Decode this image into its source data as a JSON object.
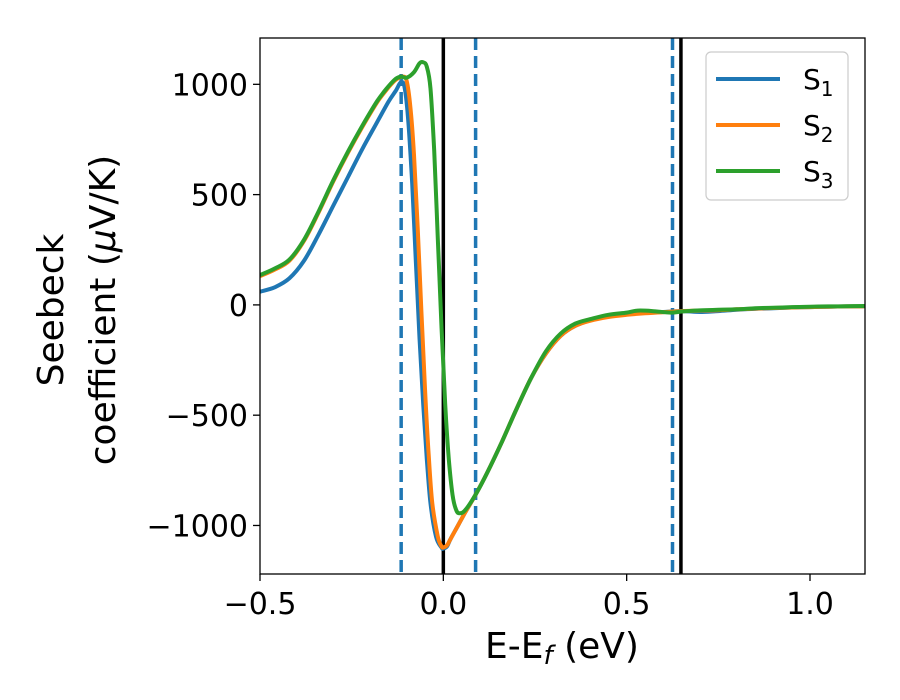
{
  "chart_data": {
    "type": "line",
    "xlabel_main": "E-E",
    "xlabel_sub": "f",
    "xlabel_unit": " (eV)",
    "ylabel_line1": "Seebeck",
    "ylabel_line2_text": "coefficient  (",
    "ylabel_line2_mu": "μ",
    "ylabel_line2_unit": "V/K)",
    "xlim": [
      -0.5,
      1.15
    ],
    "ylim": [
      -1220,
      1210
    ],
    "xticks": [
      -0.5,
      0.0,
      0.5,
      1.0
    ],
    "xtick_labels": [
      "−0.5",
      "0.0",
      "0.5",
      "1.0"
    ],
    "yticks": [
      -1000,
      -500,
      0,
      500,
      1000
    ],
    "ytick_labels": [
      "−1000",
      "−500",
      "0",
      "500",
      "1000"
    ],
    "grid": false,
    "legend_position": "top-right",
    "vlines_dashed": {
      "x": [
        -0.115,
        0.088,
        0.625
      ],
      "color": "#1f77b4"
    },
    "vlines_solid": {
      "x": [
        0.0,
        0.648
      ],
      "color": "#000000"
    },
    "series": [
      {
        "name_main": "S",
        "name_sub": "1",
        "color": "#1f77b4",
        "points": [
          [
            -0.5,
            60
          ],
          [
            -0.46,
            80
          ],
          [
            -0.42,
            120
          ],
          [
            -0.38,
            200
          ],
          [
            -0.34,
            320
          ],
          [
            -0.3,
            450
          ],
          [
            -0.26,
            580
          ],
          [
            -0.22,
            710
          ],
          [
            -0.18,
            830
          ],
          [
            -0.15,
            920
          ],
          [
            -0.13,
            970
          ],
          [
            -0.115,
            1010
          ],
          [
            -0.105,
            980
          ],
          [
            -0.095,
            820
          ],
          [
            -0.085,
            550
          ],
          [
            -0.075,
            200
          ],
          [
            -0.065,
            -150
          ],
          [
            -0.055,
            -450
          ],
          [
            -0.045,
            -700
          ],
          [
            -0.035,
            -900
          ],
          [
            -0.02,
            -1050
          ],
          [
            -0.005,
            -1100
          ],
          [
            0.0,
            -1105
          ],
          [
            0.01,
            -1095
          ],
          [
            0.02,
            -1060
          ],
          [
            0.04,
            -1000
          ],
          [
            0.06,
            -940
          ],
          [
            0.088,
            -860
          ],
          [
            0.12,
            -760
          ],
          [
            0.16,
            -620
          ],
          [
            0.2,
            -470
          ],
          [
            0.24,
            -330
          ],
          [
            0.28,
            -220
          ],
          [
            0.32,
            -140
          ],
          [
            0.36,
            -95
          ],
          [
            0.4,
            -70
          ],
          [
            0.45,
            -50
          ],
          [
            0.5,
            -42
          ],
          [
            0.55,
            -36
          ],
          [
            0.6,
            -32
          ],
          [
            0.65,
            -28
          ],
          [
            0.7,
            -32
          ],
          [
            0.75,
            -28
          ],
          [
            0.8,
            -22
          ],
          [
            0.85,
            -18
          ],
          [
            0.9,
            -15
          ],
          [
            0.95,
            -12
          ],
          [
            1.0,
            -10
          ],
          [
            1.05,
            -8
          ],
          [
            1.1,
            -7
          ],
          [
            1.15,
            -6
          ]
        ]
      },
      {
        "name_main": "S",
        "name_sub": "2",
        "color": "#ff7f0e",
        "points": [
          [
            -0.5,
            130
          ],
          [
            -0.46,
            160
          ],
          [
            -0.42,
            200
          ],
          [
            -0.38,
            290
          ],
          [
            -0.34,
            420
          ],
          [
            -0.3,
            560
          ],
          [
            -0.26,
            690
          ],
          [
            -0.22,
            810
          ],
          [
            -0.18,
            920
          ],
          [
            -0.15,
            985
          ],
          [
            -0.13,
            1020
          ],
          [
            -0.11,
            1035
          ],
          [
            -0.1,
            1015
          ],
          [
            -0.09,
            900
          ],
          [
            -0.08,
            680
          ],
          [
            -0.07,
            350
          ],
          [
            -0.06,
            -20
          ],
          [
            -0.05,
            -380
          ],
          [
            -0.04,
            -680
          ],
          [
            -0.03,
            -900
          ],
          [
            -0.015,
            -1050
          ],
          [
            -0.005,
            -1095
          ],
          [
            0.0,
            -1100
          ],
          [
            0.01,
            -1090
          ],
          [
            0.02,
            -1060
          ],
          [
            0.04,
            -1000
          ],
          [
            0.06,
            -940
          ],
          [
            0.088,
            -860
          ],
          [
            0.12,
            -760
          ],
          [
            0.16,
            -620
          ],
          [
            0.2,
            -470
          ],
          [
            0.24,
            -330
          ],
          [
            0.28,
            -220
          ],
          [
            0.32,
            -140
          ],
          [
            0.36,
            -95
          ],
          [
            0.4,
            -72
          ],
          [
            0.45,
            -55
          ],
          [
            0.5,
            -45
          ],
          [
            0.55,
            -38
          ],
          [
            0.6,
            -33
          ],
          [
            0.65,
            -28
          ],
          [
            0.7,
            -26
          ],
          [
            0.75,
            -24
          ],
          [
            0.8,
            -20
          ],
          [
            0.85,
            -17
          ],
          [
            0.9,
            -14
          ],
          [
            0.95,
            -12
          ],
          [
            1.0,
            -10
          ],
          [
            1.05,
            -8
          ],
          [
            1.1,
            -7
          ],
          [
            1.15,
            -6
          ]
        ]
      },
      {
        "name_main": "S",
        "name_sub": "3",
        "color": "#2ca02c",
        "points": [
          [
            -0.5,
            135
          ],
          [
            -0.46,
            165
          ],
          [
            -0.42,
            205
          ],
          [
            -0.38,
            295
          ],
          [
            -0.34,
            425
          ],
          [
            -0.3,
            565
          ],
          [
            -0.26,
            695
          ],
          [
            -0.22,
            815
          ],
          [
            -0.18,
            925
          ],
          [
            -0.15,
            990
          ],
          [
            -0.13,
            1025
          ],
          [
            -0.115,
            1035
          ],
          [
            -0.1,
            1030
          ],
          [
            -0.08,
            1055
          ],
          [
            -0.065,
            1095
          ],
          [
            -0.055,
            1100
          ],
          [
            -0.045,
            1080
          ],
          [
            -0.035,
            980
          ],
          [
            -0.025,
            700
          ],
          [
            -0.015,
            300
          ],
          [
            -0.005,
            -100
          ],
          [
            0.005,
            -450
          ],
          [
            0.015,
            -700
          ],
          [
            0.025,
            -860
          ],
          [
            0.035,
            -930
          ],
          [
            0.045,
            -945
          ],
          [
            0.06,
            -930
          ],
          [
            0.088,
            -860
          ],
          [
            0.12,
            -760
          ],
          [
            0.16,
            -620
          ],
          [
            0.2,
            -470
          ],
          [
            0.24,
            -330
          ],
          [
            0.28,
            -210
          ],
          [
            0.32,
            -130
          ],
          [
            0.36,
            -85
          ],
          [
            0.4,
            -65
          ],
          [
            0.45,
            -45
          ],
          [
            0.5,
            -35
          ],
          [
            0.53,
            -26
          ],
          [
            0.57,
            -28
          ],
          [
            0.62,
            -35
          ],
          [
            0.65,
            -30
          ],
          [
            0.7,
            -25
          ],
          [
            0.75,
            -22
          ],
          [
            0.8,
            -20
          ],
          [
            0.85,
            -15
          ],
          [
            0.9,
            -13
          ],
          [
            0.95,
            -10
          ],
          [
            1.0,
            -8
          ],
          [
            1.05,
            -7
          ],
          [
            1.1,
            -6
          ],
          [
            1.15,
            -5
          ]
        ]
      }
    ]
  }
}
